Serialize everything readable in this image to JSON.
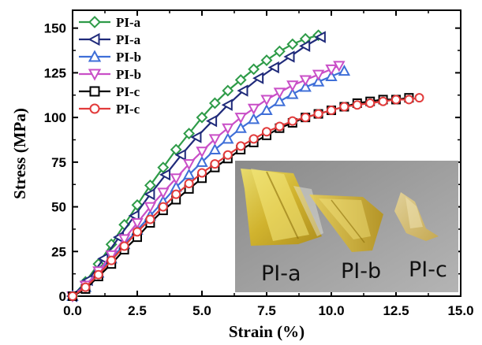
{
  "chart_data": {
    "type": "line",
    "title": "",
    "xlabel": "Strain (%)",
    "ylabel": "Stress (MPa)",
    "xlim": [
      0,
      15
    ],
    "ylim": [
      0,
      160
    ],
    "xticks": [
      "0.0",
      "2.5",
      "5.0",
      "7.5",
      "10.0",
      "12.5",
      "15.0"
    ],
    "yticks": [
      "0",
      "25",
      "50",
      "75",
      "100",
      "125",
      "150"
    ],
    "grid": false,
    "legend_position": "top-left",
    "series": [
      {
        "name": "PI-a",
        "color": "#2e9b48",
        "marker": "diamond",
        "x": [
          0,
          0.5,
          1.0,
          1.5,
          2.0,
          2.5,
          3.0,
          3.5,
          4.0,
          4.5,
          5.0,
          5.5,
          6.0,
          6.5,
          7.0,
          7.5,
          8.0,
          8.5,
          9.0,
          9.5
        ],
        "y": [
          0,
          8,
          18,
          29,
          40,
          51,
          62,
          72,
          82,
          91,
          100,
          108,
          115,
          121,
          127,
          132,
          137,
          141,
          144,
          146
        ]
      },
      {
        "name": "PI-a",
        "color": "#1f2a7a",
        "marker": "triangle-left",
        "x": [
          0,
          0.6,
          1.2,
          1.8,
          2.4,
          3.0,
          3.6,
          4.2,
          4.8,
          5.4,
          6.0,
          6.6,
          7.2,
          7.8,
          8.4,
          9.0,
          9.6
        ],
        "y": [
          0,
          9,
          21,
          33,
          45,
          57,
          68,
          79,
          89,
          98,
          107,
          115,
          122,
          128,
          134,
          140,
          145
        ]
      },
      {
        "name": "PI-b",
        "color": "#3f6fd8",
        "marker": "triangle-up",
        "x": [
          0,
          0.5,
          1.0,
          1.5,
          2.0,
          2.5,
          3.0,
          3.5,
          4.0,
          4.5,
          5.0,
          5.5,
          6.0,
          6.5,
          7.0,
          7.5,
          8.0,
          8.5,
          9.0,
          9.5,
          10.0,
          10.5
        ],
        "y": [
          0,
          5,
          13,
          21,
          29,
          37,
          45,
          53,
          61,
          68,
          75,
          82,
          88,
          94,
          99,
          104,
          109,
          113,
          117,
          120,
          123,
          126
        ]
      },
      {
        "name": "PI-b",
        "color": "#c94fc7",
        "marker": "triangle-down",
        "x": [
          0,
          0.5,
          1.0,
          1.5,
          2.0,
          2.5,
          3.0,
          3.5,
          4.0,
          4.5,
          5.0,
          5.5,
          6.0,
          6.5,
          7.0,
          7.5,
          8.0,
          8.5,
          9.0,
          9.5,
          10.0,
          10.3
        ],
        "y": [
          0,
          6,
          14,
          23,
          32,
          41,
          50,
          58,
          66,
          74,
          81,
          88,
          94,
          100,
          105,
          110,
          114,
          118,
          121,
          124,
          127,
          129
        ]
      },
      {
        "name": "PI-c",
        "color": "#000000",
        "marker": "square",
        "x": [
          0,
          0.5,
          1.0,
          1.5,
          2.0,
          2.5,
          3.0,
          3.5,
          4.0,
          4.5,
          5.0,
          5.5,
          6.0,
          6.5,
          7.0,
          7.5,
          8.0,
          8.5,
          9.0,
          9.5,
          10.0,
          10.5,
          11.0,
          11.5,
          12.0,
          12.5,
          13.0
        ],
        "y": [
          0,
          4,
          11,
          18,
          26,
          33,
          41,
          48,
          54,
          60,
          66,
          72,
          77,
          82,
          86,
          90,
          94,
          97,
          100,
          102,
          104,
          106,
          108,
          109,
          110,
          110,
          111
        ]
      },
      {
        "name": "PI-c",
        "color": "#e23b3b",
        "marker": "circle",
        "x": [
          0,
          0.5,
          1.0,
          1.5,
          2.0,
          2.5,
          3.0,
          3.5,
          4.0,
          4.5,
          5.0,
          5.5,
          6.0,
          6.5,
          7.0,
          7.5,
          8.0,
          8.5,
          9.0,
          9.5,
          10.0,
          10.5,
          11.0,
          11.5,
          12.0,
          12.5,
          13.0,
          13.4
        ],
        "y": [
          0,
          5,
          12,
          20,
          28,
          36,
          43,
          50,
          57,
          63,
          69,
          74,
          79,
          84,
          88,
          92,
          95,
          98,
          100,
          102,
          104,
          106,
          107,
          108,
          109,
          110,
          110,
          111
        ]
      }
    ]
  },
  "inset_photo": {
    "labels": [
      "PI-a",
      "PI-b",
      "PI-c"
    ]
  }
}
